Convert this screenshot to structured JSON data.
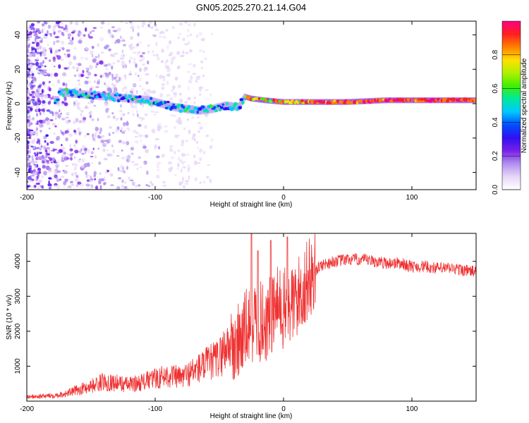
{
  "title": "GN05.2025.270.21.14.G04",
  "chart_data": [
    {
      "type": "heatmap",
      "xlabel": "Height of straight line (km)",
      "ylabel": "Frequency (Hz)",
      "xlim": [
        -200,
        150
      ],
      "ylim": [
        -50,
        48
      ],
      "xticks": [
        -200,
        -100,
        0,
        100
      ],
      "yticks": [
        -40,
        -20,
        0,
        20,
        40
      ],
      "ridge": {
        "x": [
          -175,
          -165,
          -150,
          -135,
          -120,
          -105,
          -95,
          -85,
          -75,
          -65,
          -55,
          -45,
          -35,
          -30,
          -25,
          -15,
          0,
          20,
          50,
          80,
          100,
          120,
          150
        ],
        "y": [
          7,
          6,
          5,
          4,
          3,
          2,
          0,
          -2,
          -3,
          -4,
          -3,
          -1,
          -2,
          4,
          3,
          2,
          1,
          1,
          1,
          2,
          2,
          2,
          2
        ]
      },
      "colorbar": {
        "label": "Normalized spectral amplitude",
        "range": [
          0,
          1
        ],
        "ticks": [
          0.0,
          0.2,
          0.4,
          0.6,
          0.8
        ],
        "tick_labels": [
          "0.0",
          "0.2",
          "0.4",
          "0.6",
          "0.8"
        ],
        "colormap": [
          "#ffffff",
          "#e8d6f8",
          "#b090f0",
          "#7a20e8",
          "#3010f0",
          "#0050ff",
          "#00c8ff",
          "#00e8a0",
          "#40f000",
          "#b0f000",
          "#ffe000",
          "#ff8000",
          "#ff2020",
          "#ff0080"
        ]
      }
    },
    {
      "type": "line",
      "xlabel": "Height of straight line (km)",
      "ylabel": "SNR (10 * v/v)",
      "xlim": [
        -200,
        150
      ],
      "ylim": [
        0,
        4800
      ],
      "xticks": [
        -200,
        -100,
        0,
        100
      ],
      "yticks": [
        1000,
        2000,
        3000,
        4000
      ],
      "color": "#ef3030",
      "series": [
        {
          "name": "SNR",
          "x": [
            -200,
            -190,
            -180,
            -170,
            -160,
            -150,
            -140,
            -130,
            -120,
            -110,
            -100,
            -90,
            -80,
            -70,
            -60,
            -50,
            -45,
            -40,
            -35,
            -30,
            -25,
            -20,
            -15,
            -10,
            -5,
            0,
            5,
            10,
            15,
            20,
            25,
            30,
            40,
            50,
            60,
            70,
            80,
            90,
            100,
            110,
            120,
            130,
            140,
            150
          ],
          "y": [
            100,
            110,
            130,
            170,
            260,
            350,
            450,
            420,
            380,
            440,
            520,
            600,
            540,
            700,
            850,
            1000,
            1250,
            1400,
            1700,
            2000,
            2200,
            2300,
            2200,
            2400,
            2700,
            2600,
            2700,
            2900,
            3200,
            3500,
            3750,
            3900,
            4000,
            4050,
            4050,
            4000,
            3950,
            3950,
            3850,
            3850,
            3800,
            3800,
            3750,
            3700
          ]
        }
      ],
      "spikes": [
        {
          "x": -25,
          "y": 4800
        },
        {
          "x": -20,
          "y": 4300
        },
        {
          "x": -10,
          "y": 4600
        },
        {
          "x": 3,
          "y": 4700
        }
      ]
    }
  ]
}
